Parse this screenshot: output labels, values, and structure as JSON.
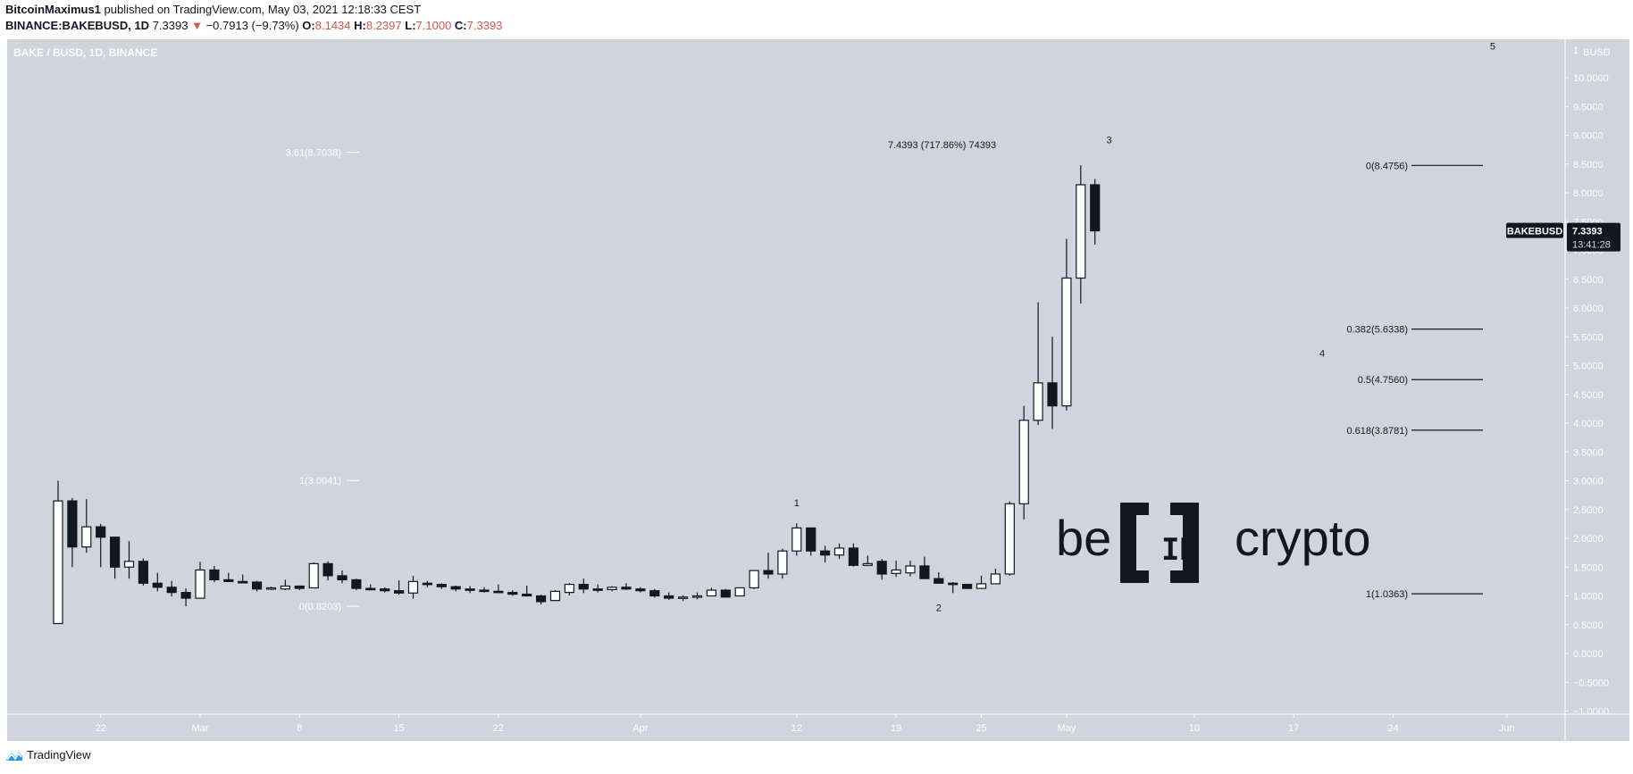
{
  "header": {
    "author": "BitcoinMaximus1",
    "published_text": "published on TradingView.com, May 03, 2021 12:18:33 CEST",
    "symbol": "BINANCE:BAKEBUSD, 1D",
    "last_price": "7.3393",
    "change": "−0.7913 (−9.73%)",
    "direction_icon": "triangle-down-icon",
    "open_label": "O:",
    "open": "8.1434",
    "high_label": "H:",
    "high": "8.2397",
    "low_label": "L:",
    "low": "7.1000",
    "close_label": "C:",
    "close": "7.3393",
    "down_color": "#d9534f"
  },
  "pane": {
    "title": "BAKE / BUSD, 1D, BINANCE",
    "background": "#d1d4dc"
  },
  "price_tag": {
    "symbol": "BAKEBUSD",
    "price": "7.3393",
    "countdown": "13:41:28"
  },
  "annotations": {
    "measure": "7.4393 (717.86%) 74393",
    "watermark": "be[IN]crypto"
  },
  "footer": {
    "brand": "TradingView"
  },
  "chart_data": {
    "type": "candlestick",
    "title": "BAKE / BUSD, 1D, BINANCE",
    "xlabel": "",
    "ylabel": "BUSD",
    "ylim": [
      -1.0,
      10.0
    ],
    "grid": false,
    "y_ticks": [
      "10.0000",
      "9.5000",
      "9.0000",
      "8.5000",
      "8.0000",
      "7.5000",
      "7.0000",
      "6.5000",
      "6.0000",
      "5.5000",
      "5.0000",
      "4.5000",
      "4.0000",
      "3.5000",
      "3.0000",
      "2.5000",
      "2.0000",
      "1.5000",
      "1.0000",
      "0.5000",
      "0.0000",
      "−0.5000",
      "−1.0000"
    ],
    "y_axis_unit": "BUSD",
    "y_axis_top_tick": "1",
    "x_ticks": [
      {
        "label": "22",
        "day": 3
      },
      {
        "label": "Mar",
        "day": 10
      },
      {
        "label": "8",
        "day": 17
      },
      {
        "label": "15",
        "day": 24
      },
      {
        "label": "22",
        "day": 31
      },
      {
        "label": "Apr",
        "day": 41
      },
      {
        "label": "12",
        "day": 52
      },
      {
        "label": "19",
        "day": 59
      },
      {
        "label": "25",
        "day": 65
      },
      {
        "label": "May",
        "day": 71
      },
      {
        "label": "10",
        "day": 80
      },
      {
        "label": "17",
        "day": 87
      },
      {
        "label": "24",
        "day": 94
      },
      {
        "label": "Jun",
        "day": 102
      }
    ],
    "candles_start": "Feb 19",
    "candles": [
      {
        "o": 0.52,
        "h": 3.0,
        "l": 0.52,
        "c": 2.65
      },
      {
        "o": 2.65,
        "h": 2.7,
        "l": 1.5,
        "c": 1.85
      },
      {
        "o": 1.85,
        "h": 2.68,
        "l": 1.75,
        "c": 2.2
      },
      {
        "o": 2.2,
        "h": 2.25,
        "l": 1.5,
        "c": 2.02
      },
      {
        "o": 2.02,
        "h": 2.02,
        "l": 1.3,
        "c": 1.5
      },
      {
        "o": 1.5,
        "h": 1.95,
        "l": 1.3,
        "c": 1.6
      },
      {
        "o": 1.6,
        "h": 1.65,
        "l": 1.18,
        "c": 1.22
      },
      {
        "o": 1.22,
        "h": 1.4,
        "l": 1.08,
        "c": 1.15
      },
      {
        "o": 1.15,
        "h": 1.26,
        "l": 0.99,
        "c": 1.06
      },
      {
        "o": 1.06,
        "h": 1.13,
        "l": 0.82,
        "c": 0.96
      },
      {
        "o": 0.96,
        "h": 1.59,
        "l": 0.96,
        "c": 1.45
      },
      {
        "o": 1.45,
        "h": 1.52,
        "l": 1.24,
        "c": 1.28
      },
      {
        "o": 1.28,
        "h": 1.4,
        "l": 1.24,
        "c": 1.25
      },
      {
        "o": 1.25,
        "h": 1.37,
        "l": 1.22,
        "c": 1.24
      },
      {
        "o": 1.24,
        "h": 1.26,
        "l": 1.08,
        "c": 1.12
      },
      {
        "o": 1.12,
        "h": 1.16,
        "l": 1.1,
        "c": 1.14
      },
      {
        "o": 1.12,
        "h": 1.28,
        "l": 1.1,
        "c": 1.17
      },
      {
        "o": 1.17,
        "h": 1.18,
        "l": 1.1,
        "c": 1.13
      },
      {
        "o": 1.14,
        "h": 1.58,
        "l": 1.14,
        "c": 1.56
      },
      {
        "o": 1.56,
        "h": 1.6,
        "l": 1.27,
        "c": 1.35
      },
      {
        "o": 1.35,
        "h": 1.44,
        "l": 1.22,
        "c": 1.28
      },
      {
        "o": 1.28,
        "h": 1.3,
        "l": 1.1,
        "c": 1.13
      },
      {
        "o": 1.13,
        "h": 1.2,
        "l": 1.1,
        "c": 1.12
      },
      {
        "o": 1.12,
        "h": 1.15,
        "l": 1.06,
        "c": 1.09
      },
      {
        "o": 1.09,
        "h": 1.27,
        "l": 1.02,
        "c": 1.05
      },
      {
        "o": 1.05,
        "h": 1.35,
        "l": 0.95,
        "c": 1.25
      },
      {
        "o": 1.22,
        "h": 1.26,
        "l": 1.15,
        "c": 1.2
      },
      {
        "o": 1.2,
        "h": 1.22,
        "l": 1.12,
        "c": 1.16
      },
      {
        "o": 1.16,
        "h": 1.18,
        "l": 1.08,
        "c": 1.12
      },
      {
        "o": 1.12,
        "h": 1.17,
        "l": 1.05,
        "c": 1.1
      },
      {
        "o": 1.1,
        "h": 1.15,
        "l": 1.06,
        "c": 1.08
      },
      {
        "o": 1.08,
        "h": 1.2,
        "l": 1.06,
        "c": 1.06
      },
      {
        "o": 1.06,
        "h": 1.1,
        "l": 1.0,
        "c": 1.03
      },
      {
        "o": 1.03,
        "h": 1.18,
        "l": 1.0,
        "c": 1.0
      },
      {
        "o": 1.0,
        "h": 1.02,
        "l": 0.85,
        "c": 0.9
      },
      {
        "o": 0.92,
        "h": 1.1,
        "l": 0.92,
        "c": 1.08
      },
      {
        "o": 1.06,
        "h": 1.22,
        "l": 1.01,
        "c": 1.2
      },
      {
        "o": 1.2,
        "h": 1.3,
        "l": 1.05,
        "c": 1.12
      },
      {
        "o": 1.12,
        "h": 1.2,
        "l": 1.06,
        "c": 1.11
      },
      {
        "o": 1.11,
        "h": 1.17,
        "l": 1.08,
        "c": 1.15
      },
      {
        "o": 1.15,
        "h": 1.22,
        "l": 1.1,
        "c": 1.12
      },
      {
        "o": 1.12,
        "h": 1.15,
        "l": 1.06,
        "c": 1.09
      },
      {
        "o": 1.09,
        "h": 1.12,
        "l": 0.97,
        "c": 1.0
      },
      {
        "o": 1.0,
        "h": 1.06,
        "l": 0.93,
        "c": 0.96
      },
      {
        "o": 0.97,
        "h": 1.01,
        "l": 0.91,
        "c": 0.98
      },
      {
        "o": 0.98,
        "h": 1.06,
        "l": 0.94,
        "c": 1.0
      },
      {
        "o": 1.0,
        "h": 1.14,
        "l": 1.0,
        "c": 1.1
      },
      {
        "o": 1.1,
        "h": 1.12,
        "l": 0.98,
        "c": 0.98
      },
      {
        "o": 1.0,
        "h": 1.14,
        "l": 1.0,
        "c": 1.14
      },
      {
        "o": 1.14,
        "h": 1.45,
        "l": 1.12,
        "c": 1.44
      },
      {
        "o": 1.44,
        "h": 1.75,
        "l": 1.3,
        "c": 1.38
      },
      {
        "o": 1.38,
        "h": 1.82,
        "l": 1.3,
        "c": 1.78
      },
      {
        "o": 1.78,
        "h": 2.26,
        "l": 1.7,
        "c": 2.18
      },
      {
        "o": 2.18,
        "h": 2.18,
        "l": 1.7,
        "c": 1.78
      },
      {
        "o": 1.78,
        "h": 1.87,
        "l": 1.58,
        "c": 1.71
      },
      {
        "o": 1.71,
        "h": 1.91,
        "l": 1.64,
        "c": 1.83
      },
      {
        "o": 1.83,
        "h": 1.91,
        "l": 1.51,
        "c": 1.53
      },
      {
        "o": 1.53,
        "h": 1.7,
        "l": 1.52,
        "c": 1.56
      },
      {
        "o": 1.6,
        "h": 1.64,
        "l": 1.28,
        "c": 1.38
      },
      {
        "o": 1.39,
        "h": 1.61,
        "l": 1.33,
        "c": 1.45
      },
      {
        "o": 1.4,
        "h": 1.61,
        "l": 1.34,
        "c": 1.52
      },
      {
        "o": 1.52,
        "h": 1.68,
        "l": 1.3,
        "c": 1.3
      },
      {
        "o": 1.3,
        "h": 1.41,
        "l": 1.22,
        "c": 1.22
      },
      {
        "o": 1.22,
        "h": 1.24,
        "l": 1.05,
        "c": 1.2
      },
      {
        "o": 1.2,
        "h": 1.21,
        "l": 1.12,
        "c": 1.13
      },
      {
        "o": 1.13,
        "h": 1.35,
        "l": 1.13,
        "c": 1.21
      },
      {
        "o": 1.21,
        "h": 1.47,
        "l": 1.21,
        "c": 1.38
      },
      {
        "o": 1.38,
        "h": 2.64,
        "l": 1.35,
        "c": 2.6
      },
      {
        "o": 2.6,
        "h": 4.3,
        "l": 2.33,
        "c": 4.05
      },
      {
        "o": 4.05,
        "h": 6.1,
        "l": 3.97,
        "c": 4.7
      },
      {
        "o": 4.7,
        "h": 5.5,
        "l": 3.9,
        "c": 4.3
      },
      {
        "o": 4.3,
        "h": 7.2,
        "l": 4.22,
        "c": 6.52
      },
      {
        "o": 6.52,
        "h": 8.48,
        "l": 6.08,
        "c": 8.14
      },
      {
        "o": 8.14,
        "h": 8.24,
        "l": 7.1,
        "c": 7.34
      }
    ],
    "fib_sets": [
      {
        "name": "left-fib",
        "levels": [
          {
            "label": "3.61(8.7038)",
            "price": 8.7038
          },
          {
            "label": "1(3.0041)",
            "price": 3.0041
          },
          {
            "label": "0(0.8203)",
            "price": 0.8203
          }
        ]
      },
      {
        "name": "right-fib",
        "levels": [
          {
            "label": "0(8.4756)",
            "price": 8.4756
          },
          {
            "label": "0.382(5.6338)",
            "price": 5.6338
          },
          {
            "label": "0.5(4.7560)",
            "price": 4.756
          },
          {
            "label": "0.618(3.8781)",
            "price": 3.8781
          },
          {
            "label": "1(1.0363)",
            "price": 1.0363
          }
        ]
      }
    ],
    "wave_labels": [
      {
        "label": "1",
        "day": 52,
        "price": 2.62
      },
      {
        "label": "2",
        "day": 62,
        "price": 0.8
      },
      {
        "label": "3",
        "day": 74,
        "price": 8.92
      },
      {
        "label": "4",
        "day": 89,
        "price": 5.22
      },
      {
        "label": "5",
        "day": 101,
        "price": 10.55
      }
    ]
  }
}
